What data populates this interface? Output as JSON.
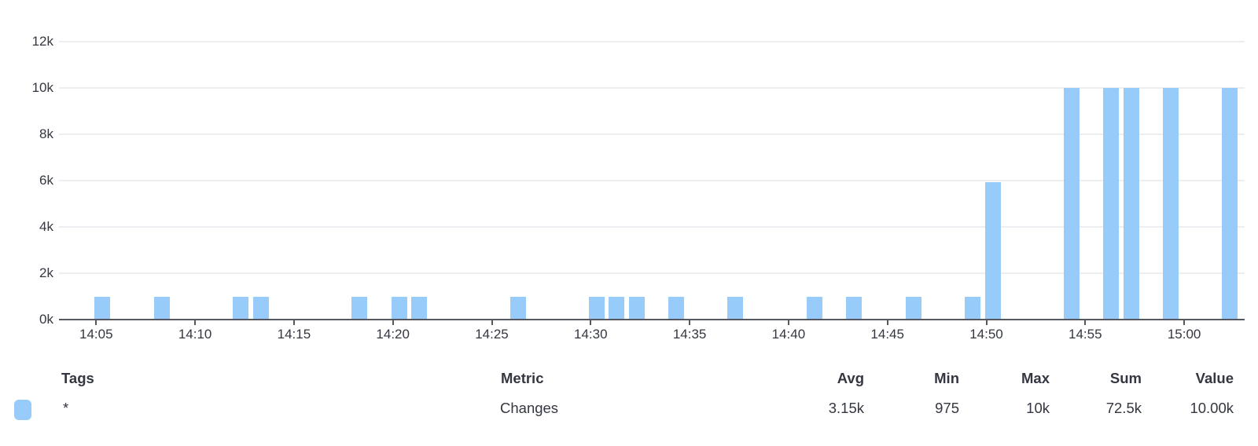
{
  "chart_data": {
    "type": "bar",
    "title": "",
    "xlabel": "",
    "ylabel": "",
    "series_name": "Changes",
    "x": [
      "14:05",
      "14:08",
      "14:12",
      "14:13",
      "14:18",
      "14:20",
      "14:21",
      "14:26",
      "14:30",
      "14:31",
      "14:32",
      "14:34",
      "14:37",
      "14:41",
      "14:43",
      "14:46",
      "14:49",
      "14:50",
      "14:54",
      "14:56",
      "14:57",
      "14:59",
      "15:02"
    ],
    "values": [
      975,
      975,
      975,
      975,
      975,
      975,
      975,
      975,
      975,
      975,
      975,
      975,
      975,
      975,
      975,
      975,
      975,
      5925,
      10000,
      10000,
      10000,
      10000,
      10000
    ],
    "x_ticks": [
      "14:05",
      "14:10",
      "14:15",
      "14:20",
      "14:25",
      "14:30",
      "14:35",
      "14:40",
      "14:45",
      "14:50",
      "14:55",
      "15:00"
    ],
    "x_range": [
      "14:03",
      "15:03"
    ],
    "y_ticks": [
      {
        "value": 0,
        "label": "0k"
      },
      {
        "value": 2000,
        "label": "2k"
      },
      {
        "value": 4000,
        "label": "4k"
      },
      {
        "value": 6000,
        "label": "6k"
      },
      {
        "value": 8000,
        "label": "8k"
      },
      {
        "value": 10000,
        "label": "10k"
      },
      {
        "value": 12000,
        "label": "12k"
      }
    ],
    "ylim": [
      0,
      12000
    ],
    "grid": true,
    "legend_position": "bottom",
    "bar_color": "#97cbfa",
    "grid_color": "#eceef2",
    "axis_color": "#55595f",
    "text_color": "#343741"
  },
  "legend_table": {
    "headers": {
      "tags": "Tags",
      "metric": "Metric",
      "avg": "Avg",
      "min": "Min",
      "max": "Max",
      "sum": "Sum",
      "value": "Value"
    },
    "rows": [
      {
        "swatch_color": "#97cbfa",
        "tags": "*",
        "metric": "Changes",
        "avg": "3.15k",
        "min": "975",
        "max": "10k",
        "sum": "72.5k",
        "value": "10.00k"
      }
    ]
  }
}
